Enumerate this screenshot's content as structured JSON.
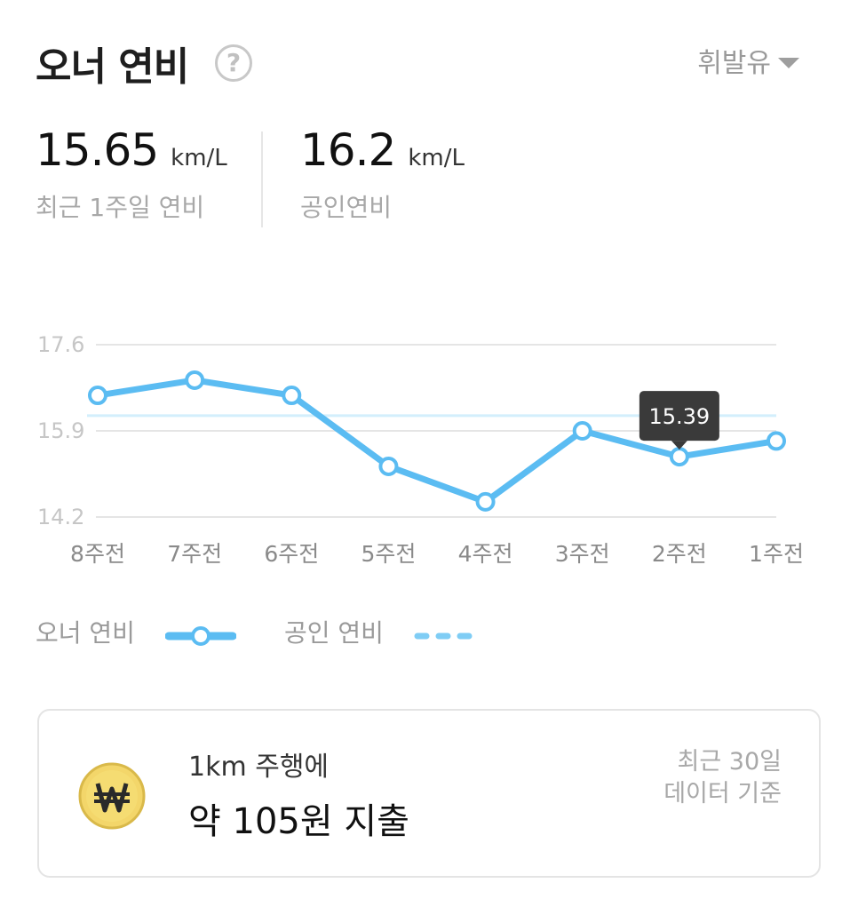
{
  "header": {
    "title": "오너 연비",
    "help_glyph": "?",
    "fuel_type": "휘발유"
  },
  "stats": {
    "owner": {
      "value": "15.65",
      "unit": "km/L",
      "caption": "최근 1주일 연비"
    },
    "official": {
      "value": "16.2",
      "unit": "km/L",
      "caption": "공인연비"
    }
  },
  "chart_data": {
    "type": "line",
    "categories": [
      "8주전",
      "7주전",
      "6주전",
      "5주전",
      "4주전",
      "3주전",
      "2주전",
      "1주전"
    ],
    "series": [
      {
        "name": "오너 연비",
        "values": [
          16.6,
          16.9,
          16.6,
          15.2,
          14.5,
          15.9,
          15.39,
          15.7
        ]
      },
      {
        "name": "공인 연비",
        "values": [
          16.2,
          16.2,
          16.2,
          16.2,
          16.2,
          16.2,
          16.2,
          16.2
        ]
      }
    ],
    "yticks": [
      "17.6",
      "15.9",
      "14.2"
    ],
    "ylim": [
      14.2,
      17.6
    ],
    "tooltip": {
      "index": 6,
      "label": "15.39"
    },
    "colors": {
      "owner": "#5bbcf2",
      "official": "#d3effc",
      "grid": "#e5e5e5"
    }
  },
  "legend": {
    "owner_label": "오너 연비",
    "official_label": "공인 연비"
  },
  "cost_card": {
    "icon": "won-coin-icon",
    "line1": "1km 주행에",
    "line2": "약 105원 지출",
    "note_line1": "최근 30일",
    "note_line2": "데이터 기준"
  }
}
